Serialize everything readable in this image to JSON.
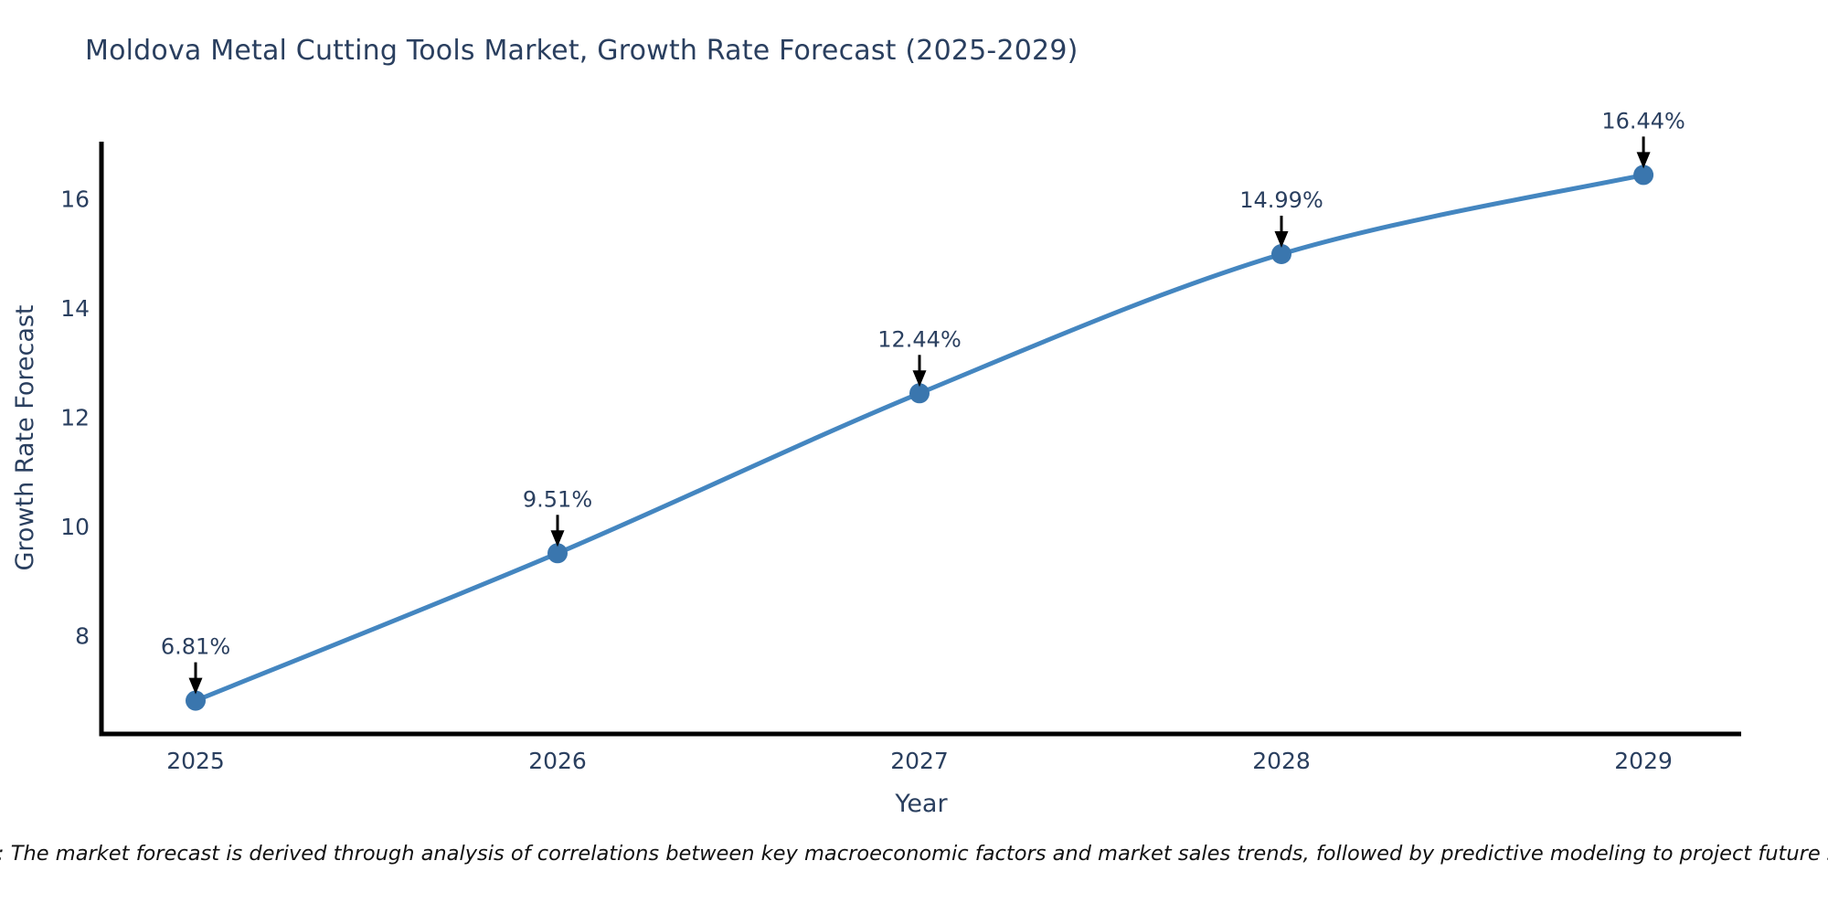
{
  "chart_data": {
    "type": "line",
    "title": "Moldova Metal Cutting Tools Market, Growth Rate Forecast (2025-2029)",
    "xlabel": "Year",
    "ylabel": "Growth Rate Forecast",
    "x": [
      2025,
      2026,
      2027,
      2028,
      2029
    ],
    "values": [
      6.81,
      9.51,
      12.44,
      14.99,
      16.44
    ],
    "point_labels": [
      "6.81%",
      "9.51%",
      "12.44%",
      "14.99%",
      "16.44%"
    ],
    "x_ticks": [
      "2025",
      "2026",
      "2027",
      "2028",
      "2029"
    ],
    "y_ticks": [
      8,
      10,
      12,
      14,
      16
    ],
    "xlim": [
      2024.74,
      2029.27
    ],
    "ylim": [
      6.2,
      17.05
    ],
    "grid": false,
    "legend": "none",
    "line_shape": "spline",
    "colors": {
      "line": "#4486c0",
      "marker": "#3a76ae",
      "text": "#2a3f5f",
      "axis": "#000000",
      "arrow": "#000000",
      "note": "#111111",
      "background": "#ffffff"
    },
    "note": "Note: The market forecast is derived through analysis of correlations between key macroeconomic factors and market sales trends, followed by predictive modeling to project future sales"
  }
}
